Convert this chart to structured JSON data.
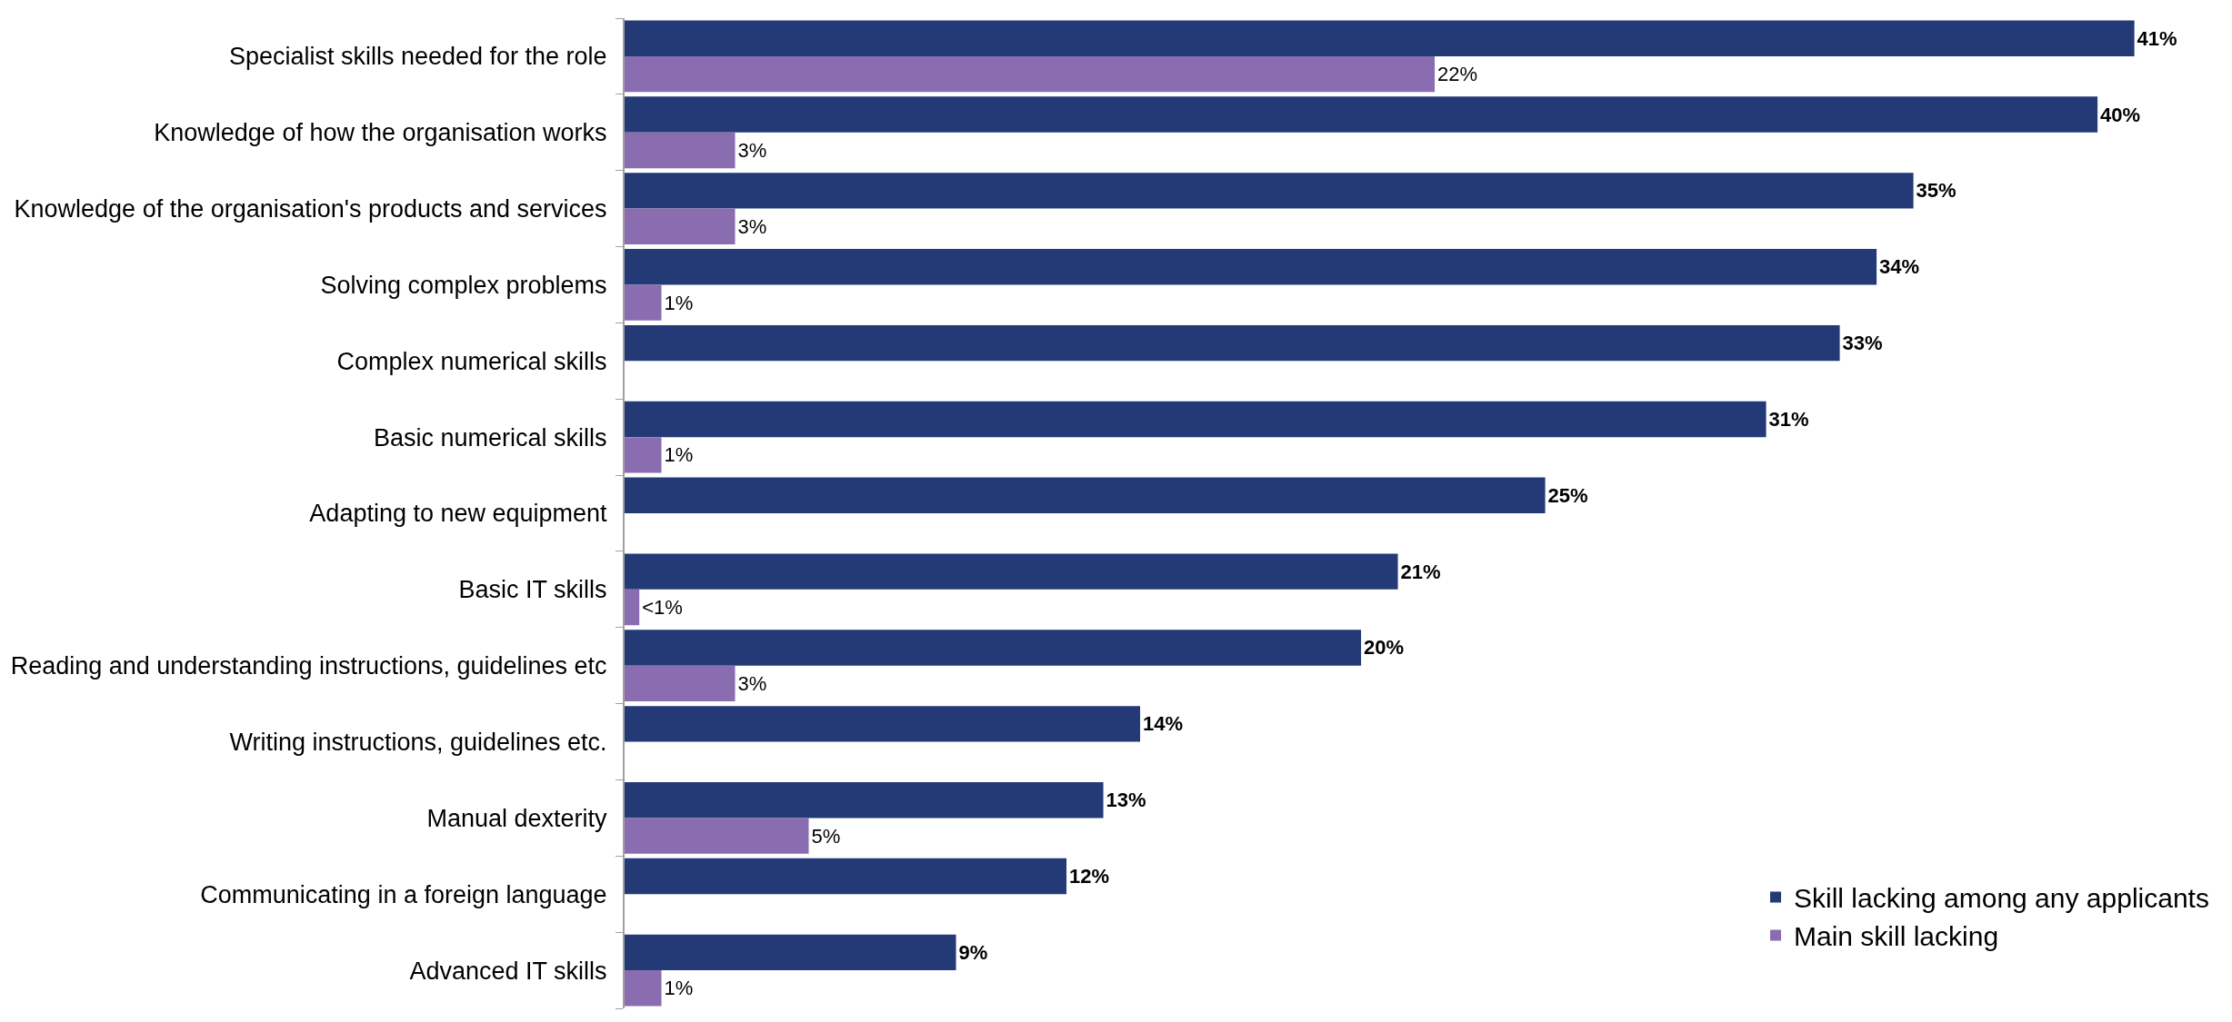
{
  "chart_data": {
    "type": "bar",
    "orientation": "horizontal",
    "legend": "bottom right",
    "categories": [
      "Specialist skills needed for the role",
      "Knowledge of how the organisation works",
      "Knowledge of the organisation's products and services",
      "Solving complex problems",
      "Complex numerical skills",
      "Basic numerical skills",
      "Adapting to new equipment",
      "Basic IT skills",
      "Reading and understanding instructions, guidelines etc",
      "Writing instructions, guidelines etc.",
      "Manual dexterity",
      "Communicating in a foreign language",
      "Advanced IT skills"
    ],
    "series": [
      {
        "name": "Skill lacking among any applicants",
        "color": "#233a77",
        "values": [
          41,
          40,
          35,
          34,
          33,
          31,
          25,
          21,
          20,
          14,
          13,
          12,
          9
        ],
        "value_labels": [
          "41%",
          "40%",
          "35%",
          "34%",
          "33%",
          "31%",
          "25%",
          "21%",
          "20%",
          "14%",
          "13%",
          "12%",
          "9%"
        ]
      },
      {
        "name": "Main skill lacking",
        "color": "#8a6db1",
        "values": [
          22,
          3,
          3,
          1,
          null,
          1,
          null,
          0.4,
          3,
          null,
          5,
          null,
          1
        ],
        "value_labels": [
          "22%",
          "3%",
          "3%",
          "1%",
          null,
          "1%",
          null,
          "<1%",
          "3%",
          null,
          "5%",
          null,
          "1%"
        ]
      }
    ]
  }
}
